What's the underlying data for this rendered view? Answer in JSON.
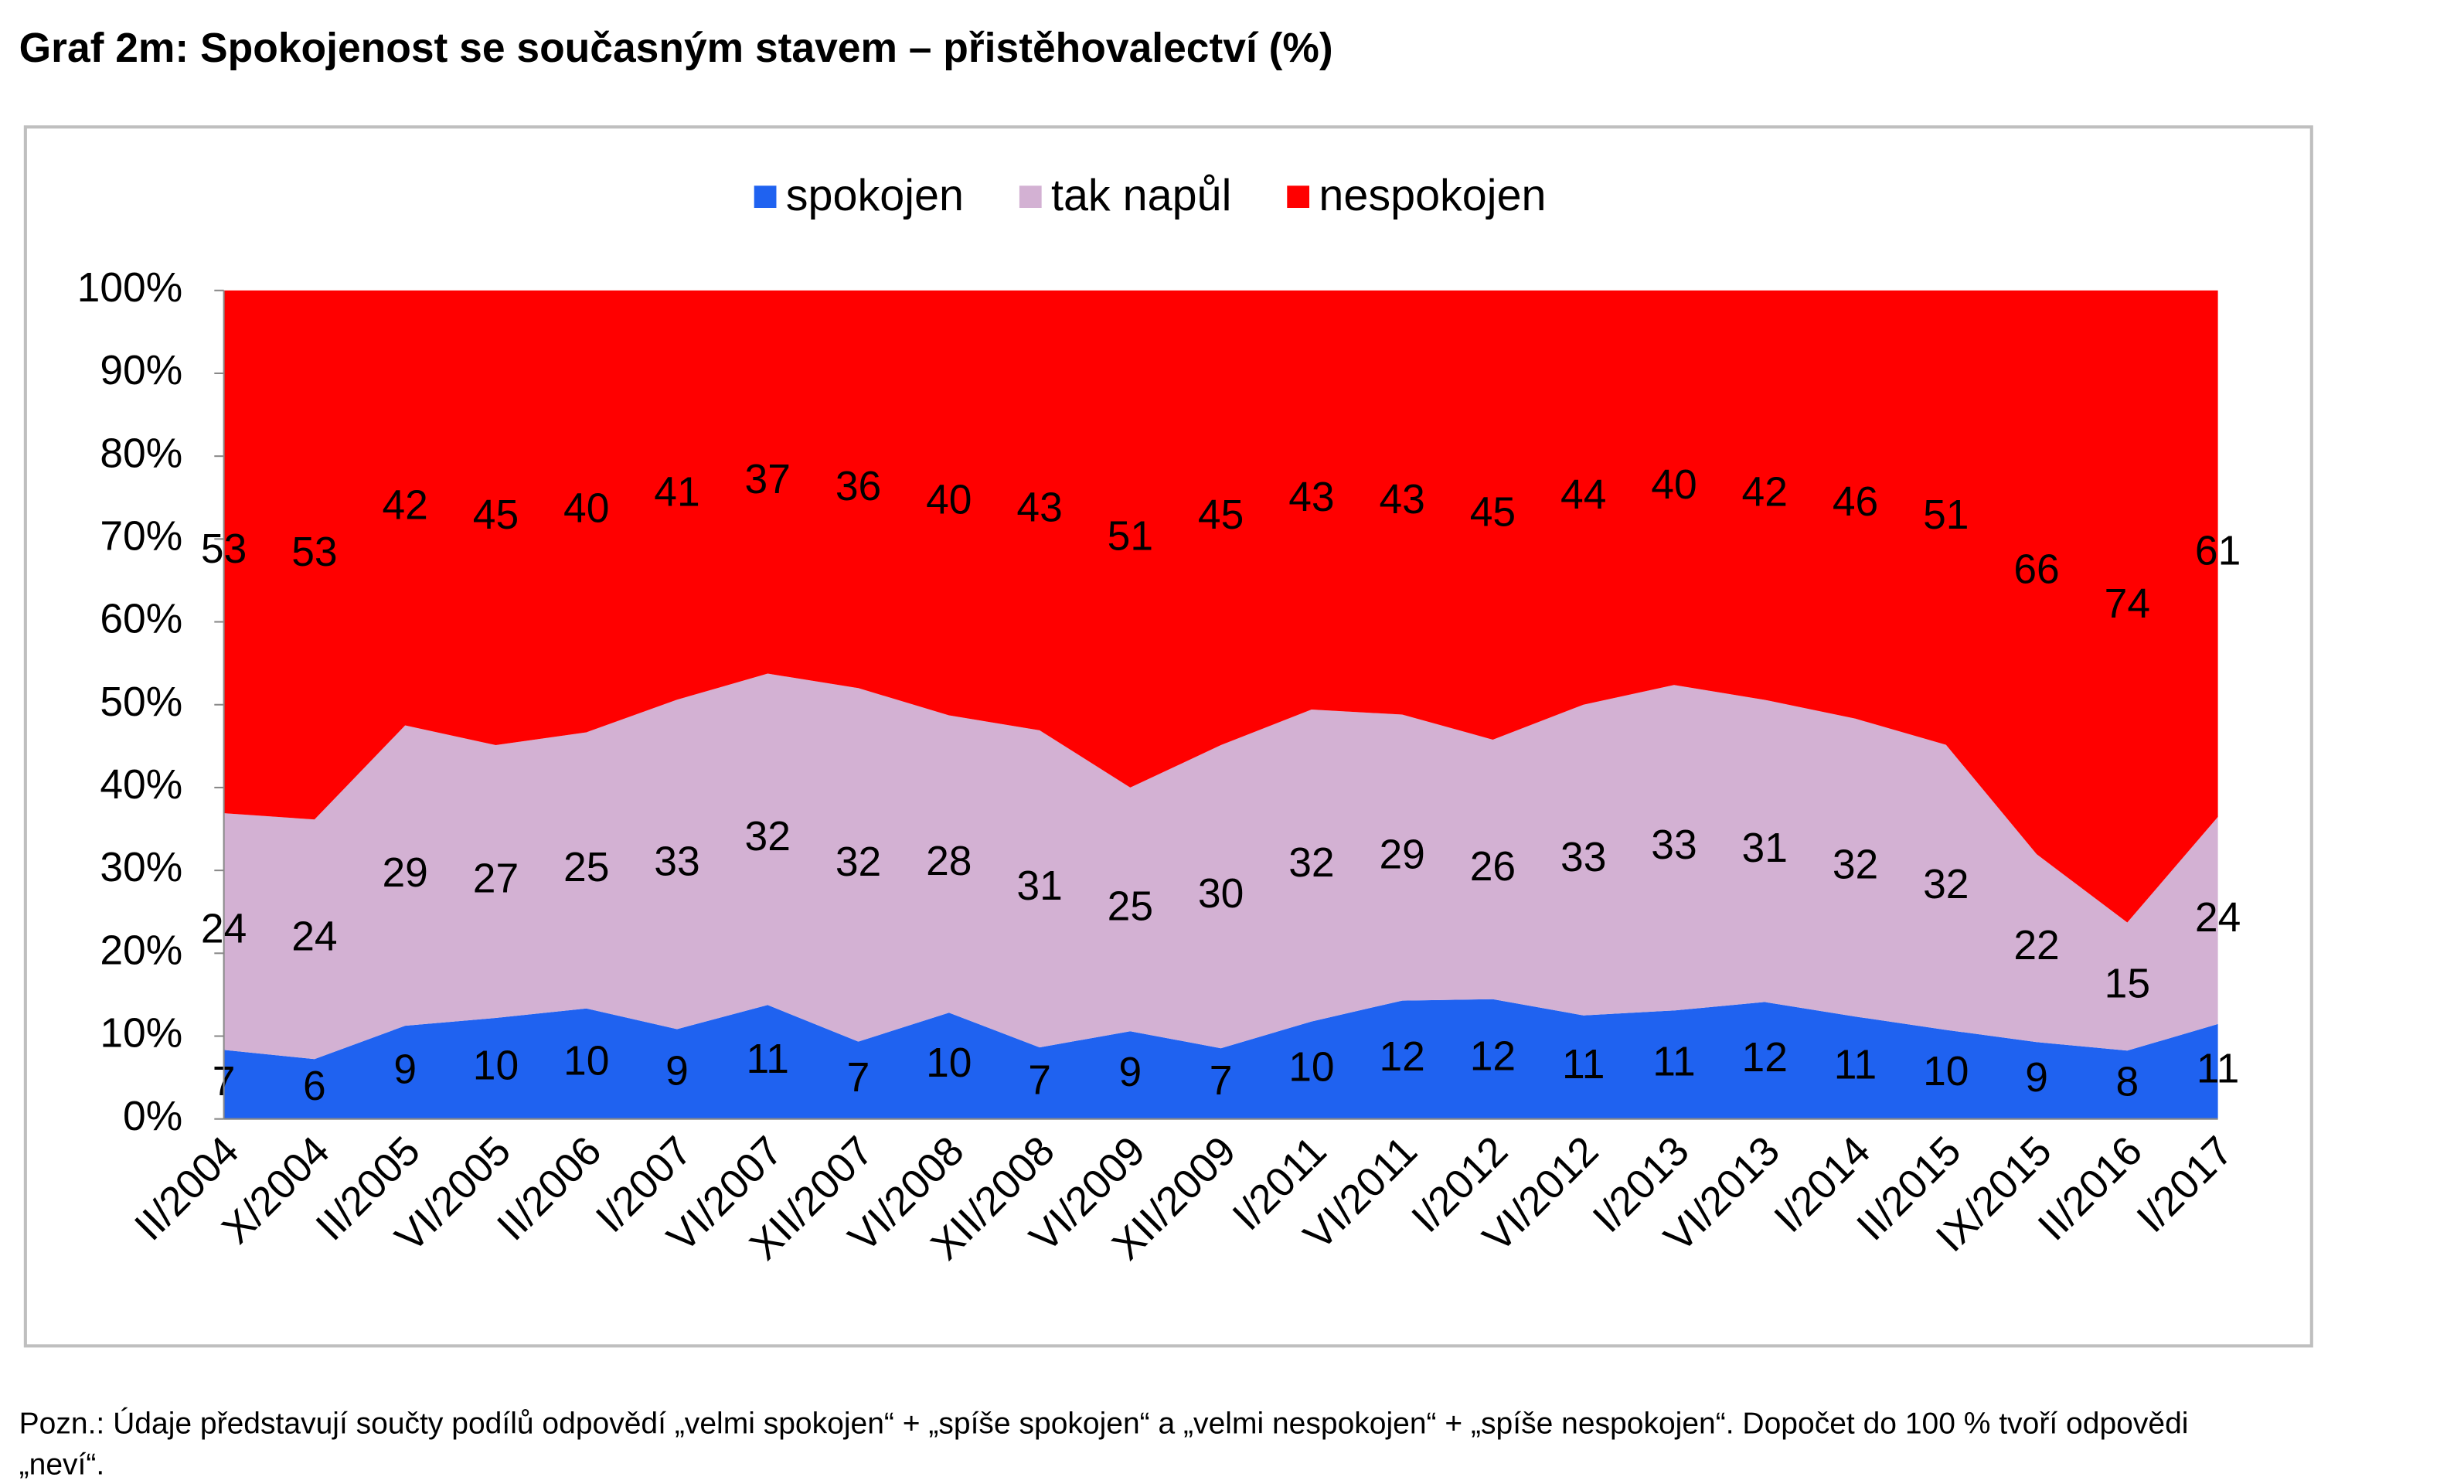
{
  "chart_data": {
    "type": "area",
    "stack": "percent",
    "title": "Graf 2m: Spokojenost se současným stavem – přistěhovalectví (%)",
    "categories": [
      "II/2004",
      "X/2004",
      "II/2005",
      "VI/2005",
      "II/2006",
      "I/2007",
      "VI/2007",
      "XII/2007",
      "VI/2008",
      "XII/2008",
      "VI/2009",
      "XII/2009",
      "I/2011",
      "VI/2011",
      "I/2012",
      "VI/2012",
      "I/2013",
      "VI/2013",
      "I/2014",
      "II/2015",
      "IX/2015",
      "II/2016",
      "I/2017"
    ],
    "series": [
      {
        "name": "spokojen",
        "color": "#1f62f0",
        "values": [
          7,
          6,
          9,
          10,
          10,
          9,
          11,
          7,
          10,
          7,
          9,
          7,
          10,
          12,
          12,
          11,
          11,
          12,
          11,
          10,
          9,
          8,
          11
        ]
      },
      {
        "name": "tak napůl",
        "color": "#d3b1d3",
        "values": [
          24,
          24,
          29,
          27,
          25,
          33,
          32,
          32,
          28,
          31,
          25,
          30,
          32,
          29,
          26,
          33,
          33,
          31,
          32,
          32,
          22,
          15,
          24
        ]
      },
      {
        "name": "nespokojen",
        "color": "#ff0000",
        "values": [
          53,
          53,
          42,
          45,
          40,
          41,
          37,
          36,
          40,
          43,
          51,
          45,
          43,
          43,
          45,
          44,
          40,
          42,
          46,
          51,
          66,
          74,
          61
        ]
      }
    ],
    "ylim": [
      0,
      100
    ],
    "yticks": [
      {
        "value": 0,
        "label": "0%"
      },
      {
        "value": 10,
        "label": "10%"
      },
      {
        "value": 20,
        "label": "20%"
      },
      {
        "value": 30,
        "label": "30%"
      },
      {
        "value": 40,
        "label": "40%"
      },
      {
        "value": 50,
        "label": "50%"
      },
      {
        "value": 60,
        "label": "60%"
      },
      {
        "value": 70,
        "label": "70%"
      },
      {
        "value": 80,
        "label": "80%"
      },
      {
        "value": 90,
        "label": "90%"
      },
      {
        "value": 100,
        "label": "100%"
      }
    ],
    "legend": "top",
    "note_lines": [
      "Pozn.: Údaje představují součty podílů odpovědí „velmi spokojen“ + „spíše spokojen“ a „velmi nespokojen“ + „spíše nespokojen“. Dopočet do 100 % tvoří odpovědi",
      "„neví“."
    ]
  }
}
